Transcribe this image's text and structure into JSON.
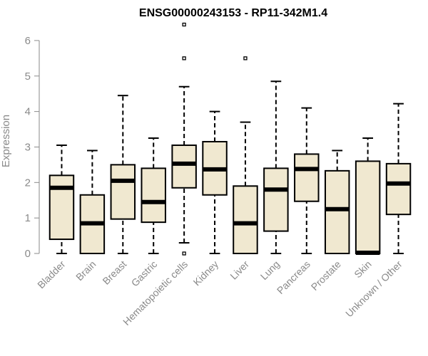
{
  "chart_data": {
    "type": "box",
    "title": "ENSG00000243153 - RP11-342M1.4",
    "xlabel": "",
    "ylabel": "Expression",
    "ylim": [
      0,
      6.5
    ],
    "yticks": [
      0,
      1,
      2,
      3,
      4,
      5,
      6
    ],
    "grid": false,
    "box_fill": "#f0e8d0",
    "box_stroke": "#000000",
    "median_color": "#000000",
    "axis_color": "#8a8a8a",
    "categories": [
      "Bladder",
      "Brain",
      "Breast",
      "Gastric",
      "Hematopoietic cells",
      "Kidney",
      "Liver",
      "Lung",
      "Pancreas",
      "Prostate",
      "Skin",
      "Unknown / Other"
    ],
    "boxes": [
      {
        "whisker_low": 0,
        "q1": 0.4,
        "median": 1.85,
        "q3": 2.2,
        "whisker_high": 3.05,
        "outliers": []
      },
      {
        "whisker_low": 0,
        "q1": 0,
        "median": 0.85,
        "q3": 1.65,
        "whisker_high": 2.9,
        "outliers": []
      },
      {
        "whisker_low": 0,
        "q1": 0.97,
        "median": 2.05,
        "q3": 2.5,
        "whisker_high": 4.45,
        "outliers": []
      },
      {
        "whisker_low": 0,
        "q1": 0.88,
        "median": 1.45,
        "q3": 2.4,
        "whisker_high": 3.25,
        "outliers": []
      },
      {
        "whisker_low": 0.3,
        "q1": 1.85,
        "median": 2.53,
        "q3": 3.05,
        "whisker_high": 4.7,
        "outliers": [
          0,
          5.5,
          6.45
        ]
      },
      {
        "whisker_low": 0,
        "q1": 1.65,
        "median": 2.37,
        "q3": 3.15,
        "whisker_high": 4.0,
        "outliers": []
      },
      {
        "whisker_low": 0,
        "q1": 0,
        "median": 0.85,
        "q3": 1.9,
        "whisker_high": 3.7,
        "outliers": [
          5.5
        ]
      },
      {
        "whisker_low": 0,
        "q1": 0.63,
        "median": 1.8,
        "q3": 2.4,
        "whisker_high": 4.85,
        "outliers": []
      },
      {
        "whisker_low": 0,
        "q1": 1.47,
        "median": 2.38,
        "q3": 2.8,
        "whisker_high": 4.1,
        "outliers": []
      },
      {
        "whisker_low": 0,
        "q1": 0,
        "median": 1.25,
        "q3": 2.33,
        "whisker_high": 2.9,
        "outliers": []
      },
      {
        "whisker_low": 0,
        "q1": 0,
        "median": 0.02,
        "q3": 2.6,
        "whisker_high": 3.25,
        "outliers": []
      },
      {
        "whisker_low": 0,
        "q1": 1.1,
        "median": 1.97,
        "q3": 2.53,
        "whisker_high": 4.22,
        "outliers": []
      }
    ]
  }
}
